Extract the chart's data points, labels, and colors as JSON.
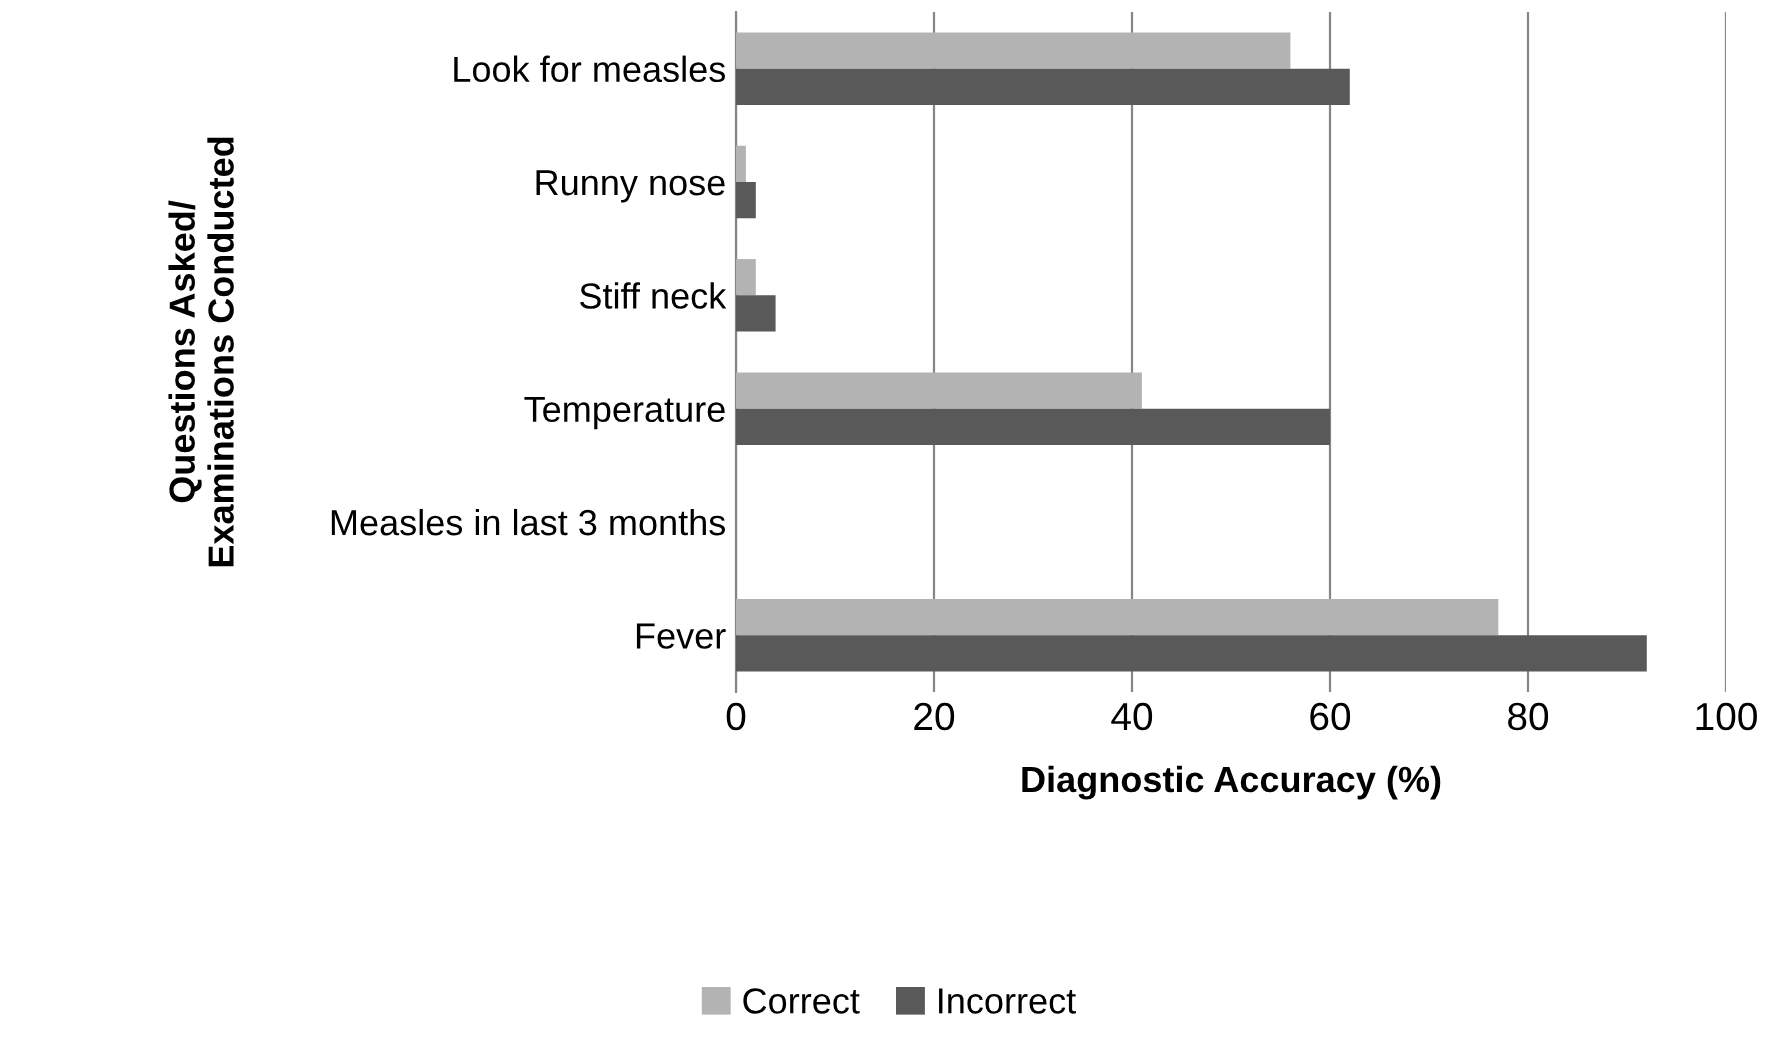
{
  "chart_data": {
    "type": "bar",
    "orientation": "horizontal",
    "xlabel": "Diagnostic Accuracy (%)",
    "ylabel": "Questions Asked/\nExaminations Conducted",
    "categories": [
      "Look for measles",
      "Runny nose",
      "Stiff neck",
      "Temperature",
      "Measles in last 3 months",
      "Fever"
    ],
    "series": [
      {
        "name": "Correct",
        "color": "#b3b3b3",
        "values": [
          56,
          1,
          2,
          41,
          0,
          77
        ]
      },
      {
        "name": "Incorrect",
        "color": "#595959",
        "values": [
          62,
          2,
          4,
          60,
          0,
          92
        ]
      }
    ],
    "xlim": [
      0,
      100
    ],
    "xticks": [
      0,
      20,
      40,
      60,
      80,
      100
    ],
    "grid": "x",
    "legend": "bottom"
  }
}
